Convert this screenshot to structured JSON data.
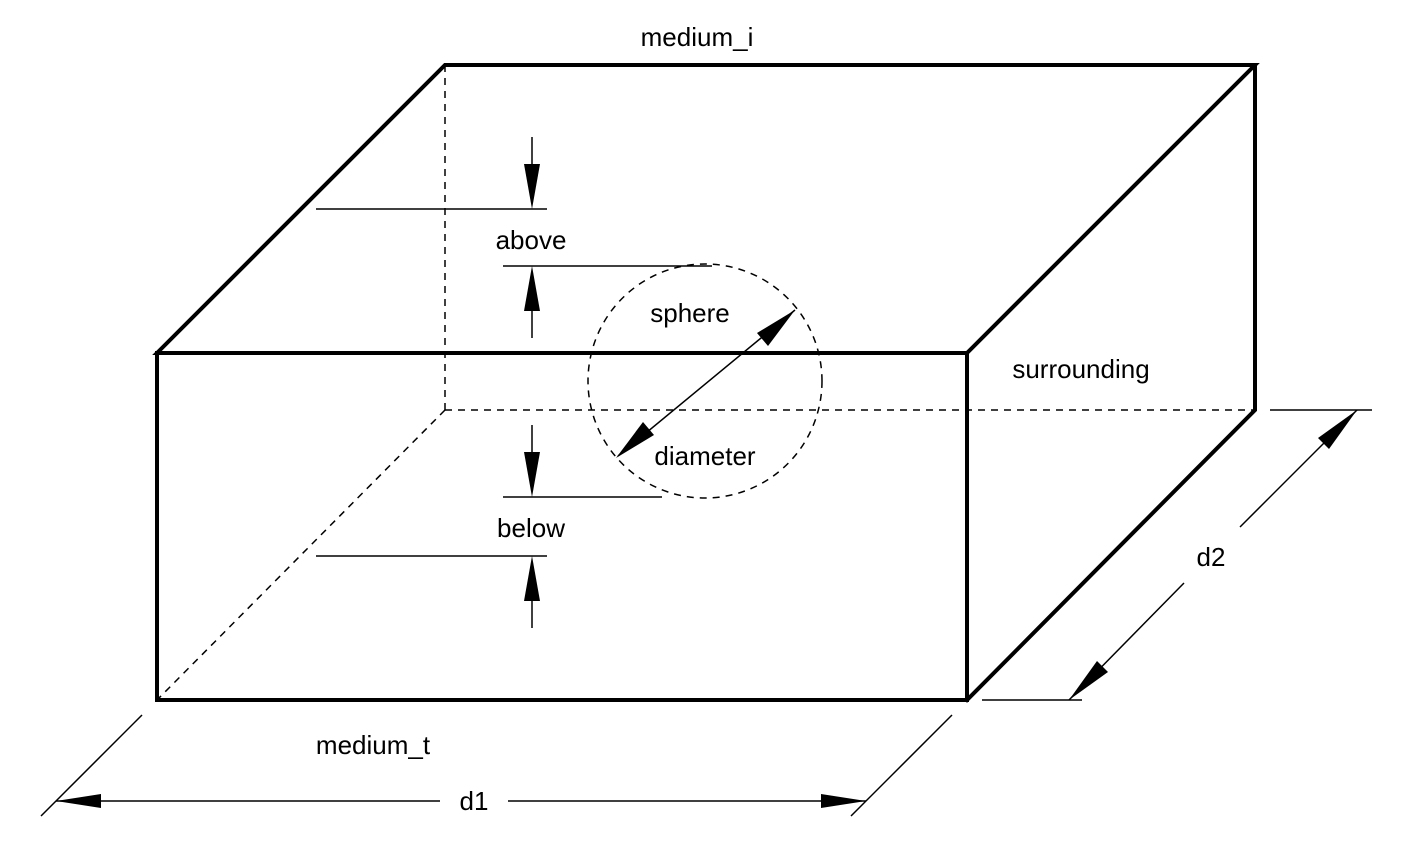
{
  "labels": {
    "medium_i": "medium_i",
    "medium_t": "medium_t",
    "above": "above",
    "below": "below",
    "sphere": "sphere",
    "diameter": "diameter",
    "surrounding": "surrounding",
    "d1": "d1",
    "d2": "d2"
  }
}
